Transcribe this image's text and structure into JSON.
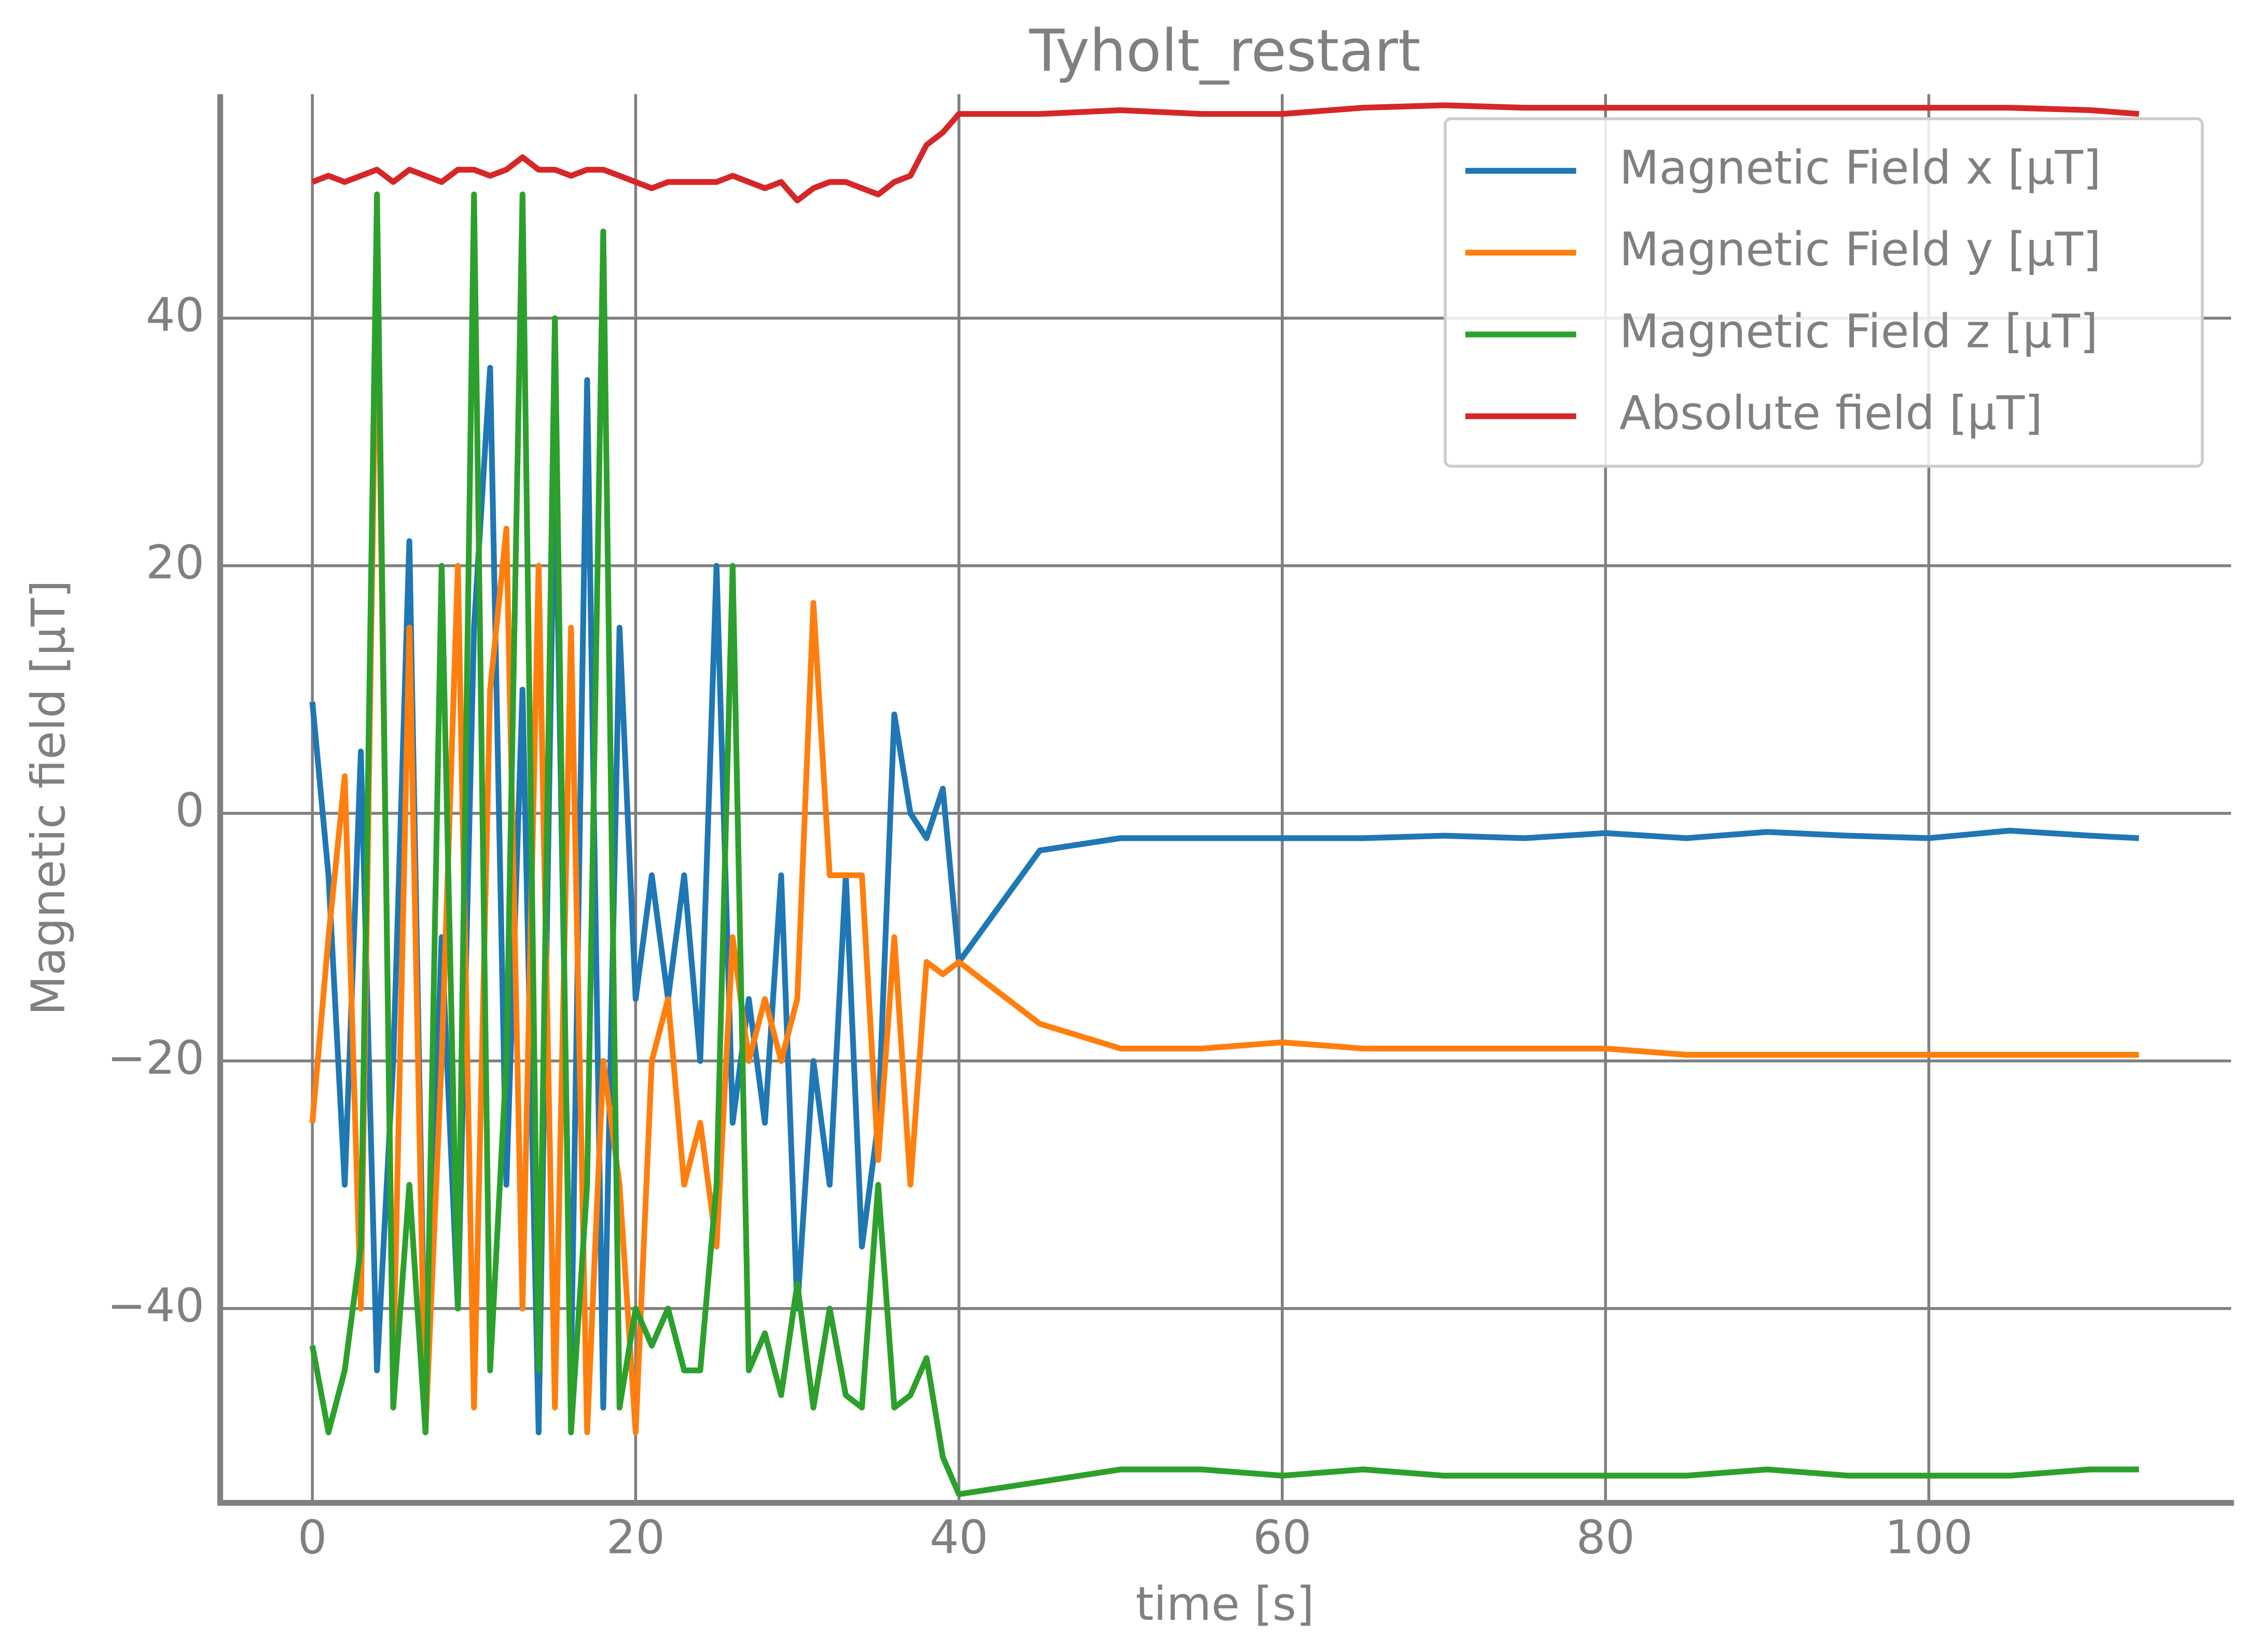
{
  "chart_data": {
    "type": "line",
    "title": "Tyholt_restart",
    "xlabel": "time [s]",
    "ylabel": "Magnetic field [μT]",
    "x": [
      0,
      1,
      2,
      3,
      4,
      5,
      6,
      7,
      8,
      9,
      10,
      11,
      12,
      13,
      14,
      15,
      16,
      17,
      18,
      19,
      20,
      21,
      22,
      23,
      24,
      25,
      26,
      27,
      28,
      29,
      30,
      31,
      32,
      33,
      34,
      35,
      36,
      37,
      38,
      39,
      40,
      45,
      50,
      55,
      60,
      65,
      70,
      75,
      80,
      85,
      90,
      95,
      100,
      105,
      110,
      113
    ],
    "series": [
      {
        "name": "Magnetic Field x [μT]",
        "color": "#1f77b4",
        "values": [
          9,
          -5,
          -30,
          5,
          -45,
          -20,
          22,
          -48,
          -10,
          -40,
          15,
          36,
          -30,
          10,
          -50,
          30,
          -45,
          35,
          -48,
          15,
          -15,
          -5,
          -15,
          -5,
          -20,
          20,
          -25,
          -15,
          -25,
          -5,
          -40,
          -20,
          -30,
          -5,
          -35,
          -25,
          8,
          0,
          -2,
          2,
          -12,
          -3,
          -2,
          -2,
          -2,
          -2,
          -1.8,
          -2,
          -1.6,
          -2,
          -1.5,
          -1.8,
          -2,
          -1.4,
          -1.8,
          -2
        ]
      },
      {
        "name": "Magnetic Field y [μT]",
        "color": "#ff7f0e",
        "values": [
          -25,
          -10,
          3,
          -40,
          45,
          -45,
          15,
          -50,
          -20,
          20,
          -48,
          10,
          23,
          -40,
          20,
          -48,
          15,
          -50,
          -20,
          -30,
          -50,
          -20,
          -15,
          -30,
          -25,
          -35,
          -10,
          -20,
          -15,
          -20,
          -15,
          17,
          -5,
          -5,
          -5,
          -28,
          -10,
          -30,
          -12,
          -13,
          -12,
          -17,
          -19,
          -19,
          -18.5,
          -19,
          -19,
          -19,
          -19,
          -19.5,
          -19.5,
          -19.5,
          -19.5,
          -19.5,
          -19.5,
          -19.5
        ]
      },
      {
        "name": "Magnetic Field z [μT]",
        "color": "#2ca02c",
        "values": [
          -43,
          -50,
          -45,
          -35,
          50,
          -48,
          -30,
          -50,
          20,
          -40,
          50,
          -45,
          -20,
          50,
          -45,
          40,
          -50,
          -30,
          47,
          -48,
          -40,
          -43,
          -40,
          -45,
          -45,
          -30,
          20,
          -45,
          -42,
          -47,
          -38,
          -48,
          -40,
          -47,
          -48,
          -30,
          -48,
          -47,
          -44,
          -52,
          -55,
          -54,
          -53,
          -53,
          -53.5,
          -53,
          -53.5,
          -53.5,
          -53.5,
          -53.5,
          -53,
          -53.5,
          -53.5,
          -53.5,
          -53,
          -53
        ]
      },
      {
        "name": "Absolute field [μT]",
        "color": "#d62728",
        "values": [
          51,
          51.5,
          51,
          51.5,
          52,
          51,
          52,
          51.5,
          51,
          52,
          52,
          51.5,
          52,
          53,
          52,
          52,
          51.5,
          52,
          52,
          51.5,
          51,
          50.5,
          51,
          51,
          51,
          51,
          51.5,
          51,
          50.5,
          51,
          49.5,
          50.5,
          51,
          51,
          50.5,
          50,
          51,
          51.5,
          54,
          55,
          56.5,
          56.5,
          56.8,
          56.5,
          56.5,
          57,
          57.2,
          57,
          57,
          57,
          57,
          57,
          57,
          57,
          56.8,
          56.5
        ]
      }
    ],
    "xlim": [
      -5.7,
      118.7
    ],
    "ylim": [
      -55.7,
      58.1
    ],
    "xticks": [
      0,
      20,
      40,
      60,
      80,
      100
    ],
    "yticks": [
      {
        "value": -40,
        "label": "−40"
      },
      {
        "value": -20,
        "label": "−20"
      },
      0,
      20,
      40
    ],
    "grid": true,
    "legend": "upper right"
  }
}
